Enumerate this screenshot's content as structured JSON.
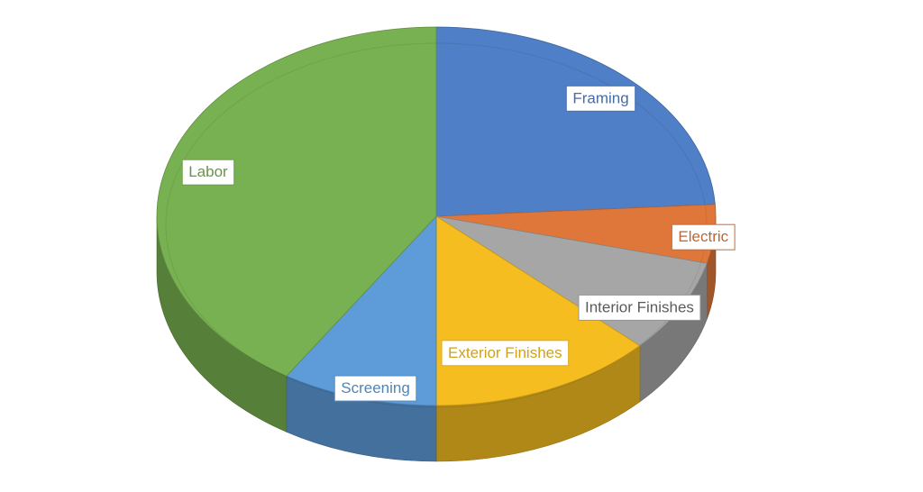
{
  "chart_data": {
    "type": "pie",
    "style": "3d",
    "title": "",
    "legend": "none",
    "start_angle_deg": 0,
    "slices": [
      {
        "label": "Framing",
        "value": 24,
        "color": "#4F7FC6"
      },
      {
        "label": "Electric",
        "value": 5,
        "color": "#E0773A"
      },
      {
        "label": "Interior Finishes",
        "value": 8,
        "color": "#A6A6A6"
      },
      {
        "label": "Exterior Finishes",
        "value": 13,
        "color": "#F5BD20"
      },
      {
        "label": "Screening",
        "value": 9,
        "color": "#5D9CD8"
      },
      {
        "label": "Labor",
        "value": 41,
        "color": "#78B151"
      }
    ]
  }
}
